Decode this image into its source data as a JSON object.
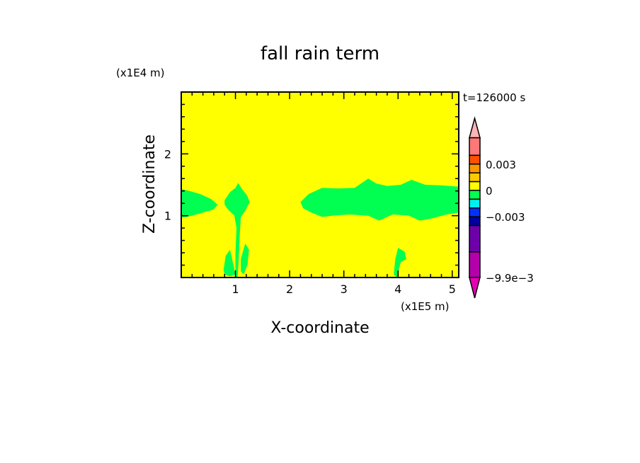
{
  "chart_data": {
    "type": "heatmap",
    "title": "fall rain term",
    "xlabel": "X-coordinate",
    "ylabel": "Z-coordinate",
    "x_unit": "(x1E5 m)",
    "y_unit": "(x1E4 m)",
    "time_label": "t=126000 s",
    "xlim": [
      0,
      5.12
    ],
    "ylim": [
      0,
      3.0
    ],
    "x_ticks": [
      1,
      2,
      3,
      4,
      5
    ],
    "y_ticks": [
      1,
      2
    ],
    "background_color": "#ffff00",
    "region_color": "#00ff50",
    "regions": [
      {
        "level": "0 to -0.001",
        "points": [
          [
            0,
            1.43
          ],
          [
            0.15,
            1.4
          ],
          [
            0.35,
            1.35
          ],
          [
            0.55,
            1.27
          ],
          [
            0.67,
            1.18
          ],
          [
            0.6,
            1.1
          ],
          [
            0.4,
            1.05
          ],
          [
            0.2,
            1.0
          ],
          [
            0.05,
            0.97
          ],
          [
            0,
            0.98
          ]
        ]
      },
      {
        "level": "0 to -0.001",
        "points": [
          [
            0.8,
            1.25
          ],
          [
            0.9,
            1.38
          ],
          [
            1.0,
            1.45
          ],
          [
            1.05,
            1.53
          ],
          [
            1.12,
            1.43
          ],
          [
            1.22,
            1.32
          ],
          [
            1.26,
            1.22
          ],
          [
            1.18,
            1.08
          ],
          [
            1.1,
            0.98
          ],
          [
            1.08,
            0.7
          ],
          [
            1.06,
            0.3
          ],
          [
            1.04,
            0.0
          ],
          [
            1.0,
            0.0
          ],
          [
            1.0,
            0.4
          ],
          [
            1.02,
            0.8
          ],
          [
            0.98,
            1.0
          ],
          [
            0.86,
            1.1
          ],
          [
            0.8,
            1.18
          ]
        ]
      },
      {
        "level": "0 to -0.001",
        "points": [
          [
            0.78,
            0.12
          ],
          [
            0.82,
            0.35
          ],
          [
            0.9,
            0.45
          ],
          [
            0.95,
            0.25
          ],
          [
            1.0,
            0.05
          ],
          [
            0.9,
            0.02
          ],
          [
            0.8,
            0.05
          ]
        ]
      },
      {
        "level": "0 to -0.001",
        "points": [
          [
            1.1,
            0.3
          ],
          [
            1.18,
            0.55
          ],
          [
            1.25,
            0.45
          ],
          [
            1.22,
            0.2
          ],
          [
            1.15,
            0.05
          ],
          [
            1.1,
            0.1
          ]
        ]
      },
      {
        "level": "0 to -0.001",
        "points": [
          [
            2.2,
            1.22
          ],
          [
            2.35,
            1.35
          ],
          [
            2.6,
            1.45
          ],
          [
            2.9,
            1.44
          ],
          [
            3.2,
            1.45
          ],
          [
            3.45,
            1.6
          ],
          [
            3.6,
            1.52
          ],
          [
            3.8,
            1.48
          ],
          [
            4.05,
            1.5
          ],
          [
            4.25,
            1.58
          ],
          [
            4.5,
            1.5
          ],
          [
            4.8,
            1.49
          ],
          [
            5.12,
            1.47
          ],
          [
            5.12,
            1.05
          ],
          [
            4.9,
            1.02
          ],
          [
            4.6,
            0.95
          ],
          [
            4.4,
            0.92
          ],
          [
            4.2,
            1.0
          ],
          [
            3.9,
            1.02
          ],
          [
            3.65,
            0.92
          ],
          [
            3.45,
            1.0
          ],
          [
            3.1,
            1.02
          ],
          [
            2.8,
            1.0
          ],
          [
            2.6,
            0.98
          ],
          [
            2.4,
            1.05
          ],
          [
            2.25,
            1.12
          ]
        ]
      },
      {
        "level": "0 to -0.001",
        "points": [
          [
            3.92,
            0.05
          ],
          [
            3.95,
            0.3
          ],
          [
            4.0,
            0.48
          ],
          [
            4.12,
            0.42
          ],
          [
            4.15,
            0.3
          ],
          [
            4.05,
            0.25
          ],
          [
            3.98,
            0.0
          ]
        ]
      }
    ],
    "colorbar": {
      "levels": [
        0.006,
        0.004,
        0.003,
        0.002,
        0.001,
        0,
        -0.001,
        -0.002,
        -0.003,
        -0.004,
        -0.007,
        -0.0099
      ],
      "colors": [
        "#ff7878",
        "#ff5000",
        "#ff9600",
        "#ffc800",
        "#ffff00",
        "#00ff50",
        "#00f0f0",
        "#0032ff",
        "#0000a0",
        "#6e00aa",
        "#b400aa"
      ],
      "over_color": "#ffb4b4",
      "under_color": "#e600b4",
      "labels": [
        {
          "value": 0.003,
          "text": "0.003"
        },
        {
          "value": 0,
          "text": "0"
        },
        {
          "value": -0.003,
          "text": "−0.003"
        },
        {
          "value": -0.0099,
          "text": "−9.9e−3"
        }
      ]
    }
  }
}
